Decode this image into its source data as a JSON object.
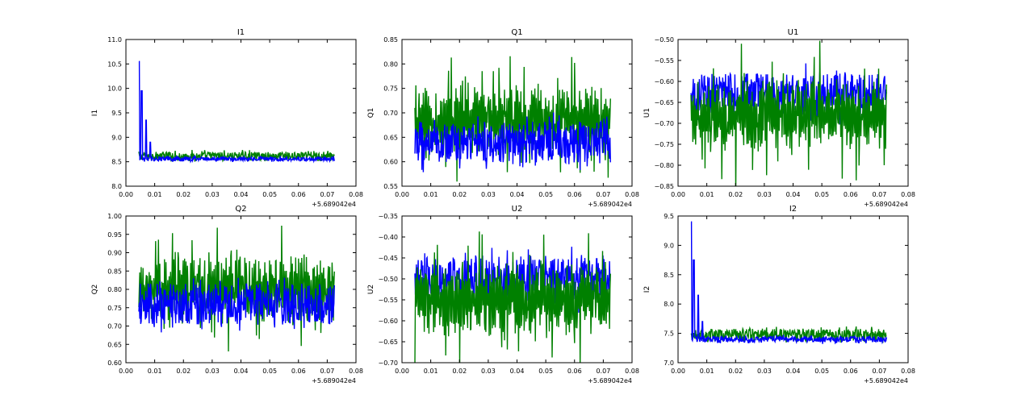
{
  "chart_data": [
    {
      "type": "line",
      "title": "I1",
      "xlabel": "",
      "ylabel": "I1",
      "x_offset_text": "+5.689042e4",
      "xlim": [
        0.0,
        0.08
      ],
      "ylim": [
        8.0,
        11.0
      ],
      "xticks": [
        "0.00",
        "0.01",
        "0.02",
        "0.03",
        "0.04",
        "0.05",
        "0.06",
        "0.07",
        "0.08"
      ],
      "yticks": [
        "8.0",
        "8.5",
        "9.0",
        "9.5",
        "10.0",
        "10.5",
        "11.0"
      ],
      "x_range": [
        0.0045,
        0.0725
      ],
      "series": [
        {
          "color": "#008000",
          "base": 8.62,
          "amp": 0.12,
          "trend": -0.05,
          "spikes": [],
          "pattern": "noise"
        },
        {
          "color": "#0000ff",
          "base": 8.56,
          "amp": 0.06,
          "trend": -0.1,
          "spikes": [
            [
              0.0045,
              10.55
            ],
            [
              0.0055,
              9.95
            ],
            [
              0.007,
              9.35
            ],
            [
              0.0085,
              8.9
            ]
          ],
          "pattern": "noise"
        }
      ]
    },
    {
      "type": "line",
      "title": "Q1",
      "xlabel": "",
      "ylabel": "Q1",
      "x_offset_text": "+5.689042e4",
      "xlim": [
        0.0,
        0.08
      ],
      "ylim": [
        0.55,
        0.85
      ],
      "xticks": [
        "0.00",
        "0.01",
        "0.02",
        "0.03",
        "0.04",
        "0.05",
        "0.06",
        "0.07",
        "0.08"
      ],
      "yticks": [
        "0.55",
        "0.60",
        "0.65",
        "0.70",
        "0.75",
        "0.80",
        "0.85"
      ],
      "x_range": [
        0.0045,
        0.0725
      ],
      "series": [
        {
          "color": "#008000",
          "base": 0.685,
          "amp": 0.1,
          "trend": 0,
          "spikes": [],
          "pattern": "oscillate"
        },
        {
          "color": "#0000ff",
          "base": 0.64,
          "amp": 0.06,
          "trend": 0,
          "spikes": [],
          "pattern": "noise"
        }
      ]
    },
    {
      "type": "line",
      "title": "U1",
      "xlabel": "",
      "ylabel": "U1",
      "x_offset_text": "+5.689042e4",
      "xlim": [
        0.0,
        0.08
      ],
      "ylim": [
        -0.85,
        -0.5
      ],
      "xticks": [
        "0.00",
        "0.01",
        "0.02",
        "0.03",
        "0.04",
        "0.05",
        "0.06",
        "0.07",
        "0.08"
      ],
      "yticks": [
        "−0.85",
        "−0.80",
        "−0.75",
        "−0.70",
        "−0.65",
        "−0.60",
        "−0.55",
        "−0.50"
      ],
      "x_range": [
        0.0045,
        0.0725
      ],
      "series": [
        {
          "color": "#0000ff",
          "base": -0.63,
          "amp": 0.07,
          "trend": 0,
          "spikes": [],
          "pattern": "noise"
        },
        {
          "color": "#008000",
          "base": -0.68,
          "amp": 0.12,
          "trend": 0,
          "spikes": [],
          "pattern": "oscillate"
        }
      ]
    },
    {
      "type": "line",
      "title": "Q2",
      "xlabel": "",
      "ylabel": "Q2",
      "x_offset_text": "+5.689042e4",
      "xlim": [
        0.0,
        0.08
      ],
      "ylim": [
        0.6,
        1.0
      ],
      "xticks": [
        "0.00",
        "0.01",
        "0.02",
        "0.03",
        "0.04",
        "0.05",
        "0.06",
        "0.07",
        "0.08"
      ],
      "yticks": [
        "0.60",
        "0.65",
        "0.70",
        "0.75",
        "0.80",
        "0.85",
        "0.90",
        "0.95",
        "1.00"
      ],
      "x_range": [
        0.0045,
        0.0725
      ],
      "series": [
        {
          "color": "#008000",
          "base": 0.8,
          "amp": 0.13,
          "trend": 0,
          "spikes": [],
          "pattern": "oscillate"
        },
        {
          "color": "#0000ff",
          "base": 0.76,
          "amp": 0.08,
          "trend": 0,
          "spikes": [],
          "pattern": "noise"
        }
      ]
    },
    {
      "type": "line",
      "title": "U2",
      "xlabel": "",
      "ylabel": "U2",
      "x_offset_text": "+5.689042e4",
      "xlim": [
        0.0,
        0.08
      ],
      "ylim": [
        -0.7,
        -0.35
      ],
      "xticks": [
        "0.00",
        "0.01",
        "0.02",
        "0.03",
        "0.04",
        "0.05",
        "0.06",
        "0.07",
        "0.08"
      ],
      "yticks": [
        "−0.70",
        "−0.65",
        "−0.60",
        "−0.55",
        "−0.50",
        "−0.45",
        "−0.40",
        "−0.35"
      ],
      "x_range": [
        0.0045,
        0.0725
      ],
      "series": [
        {
          "color": "#0000ff",
          "base": -0.5,
          "amp": 0.08,
          "trend": 0,
          "spikes": [],
          "pattern": "noise"
        },
        {
          "color": "#008000",
          "base": -0.55,
          "amp": 0.12,
          "trend": 0,
          "spikes": [],
          "pattern": "oscillate"
        }
      ]
    },
    {
      "type": "line",
      "title": "I2",
      "xlabel": "",
      "ylabel": "I2",
      "x_offset_text": "+5.689042e4",
      "xlim": [
        0.0,
        0.08
      ],
      "ylim": [
        7.0,
        9.5
      ],
      "xticks": [
        "0.00",
        "0.01",
        "0.02",
        "0.03",
        "0.04",
        "0.05",
        "0.06",
        "0.07",
        "0.08"
      ],
      "yticks": [
        "7.0",
        "7.5",
        "8.0",
        "8.5",
        "9.0",
        "9.5"
      ],
      "x_range": [
        0.0045,
        0.0725
      ],
      "series": [
        {
          "color": "#008000",
          "base": 7.48,
          "amp": 0.14,
          "trend": -0.08,
          "spikes": [],
          "pattern": "noise"
        },
        {
          "color": "#0000ff",
          "base": 7.4,
          "amp": 0.07,
          "trend": -0.08,
          "spikes": [
            [
              0.0045,
              9.4
            ],
            [
              0.0055,
              8.75
            ],
            [
              0.007,
              8.15
            ],
            [
              0.0085,
              7.7
            ]
          ],
          "pattern": "noise"
        }
      ]
    }
  ]
}
